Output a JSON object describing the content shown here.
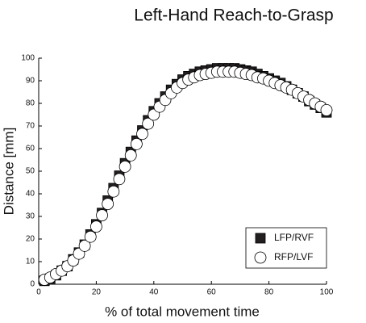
{
  "chart_data": {
    "type": "scatter",
    "title": "Left-Hand Reach-to-Grasp",
    "x_label": "% of total movement time",
    "y_label": "Distance [mm]",
    "x": [
      2,
      4,
      6,
      8,
      10,
      12,
      14,
      16,
      18,
      20,
      22,
      24,
      26,
      28,
      30,
      32,
      34,
      36,
      38,
      40,
      42,
      44,
      46,
      48,
      50,
      52,
      54,
      56,
      58,
      60,
      62,
      64,
      66,
      68,
      70,
      72,
      74,
      76,
      78,
      80,
      82,
      84,
      86,
      88,
      90,
      92,
      94,
      96,
      98,
      100
    ],
    "series": [
      {
        "name": "LFP/RVF",
        "color": "#231f20",
        "marker": "square",
        "values": [
          1.5,
          2.5,
          4,
          6,
          8,
          11,
          14,
          17.5,
          22,
          26.5,
          31.5,
          37,
          42.5,
          48,
          53.5,
          58.5,
          63.5,
          68,
          72.5,
          76.5,
          80,
          83,
          86,
          88.5,
          90.5,
          92,
          93,
          94,
          94.5,
          95,
          95.5,
          95.5,
          95.5,
          95.5,
          95,
          94.5,
          94,
          93,
          92,
          91,
          90,
          89,
          87.5,
          86,
          84.5,
          83,
          81,
          79.5,
          78,
          76
        ]
      },
      {
        "name": "RFP/LVF",
        "color": "#ffffff",
        "marker": "circle",
        "values": [
          2,
          3,
          4.5,
          6,
          8,
          10.5,
          13.5,
          17,
          21,
          25.5,
          30.5,
          35.5,
          41,
          46.5,
          52,
          57,
          62,
          66.5,
          71,
          75,
          78.5,
          81.5,
          84.5,
          87,
          89,
          90.5,
          91.5,
          92.5,
          93,
          93.5,
          94,
          94,
          94,
          94,
          93.5,
          93,
          92.5,
          91.5,
          91,
          90,
          89,
          88,
          87,
          86,
          84.5,
          83,
          81.5,
          80,
          78.5,
          77
        ]
      }
    ],
    "xlim": [
      0,
      100
    ],
    "xticks": [
      0,
      20,
      40,
      60,
      80,
      100
    ],
    "ylim": [
      0,
      100
    ],
    "yticks": [
      0,
      10,
      20,
      30,
      40,
      50,
      60,
      70,
      80,
      90,
      100
    ],
    "legend": "lower right"
  }
}
